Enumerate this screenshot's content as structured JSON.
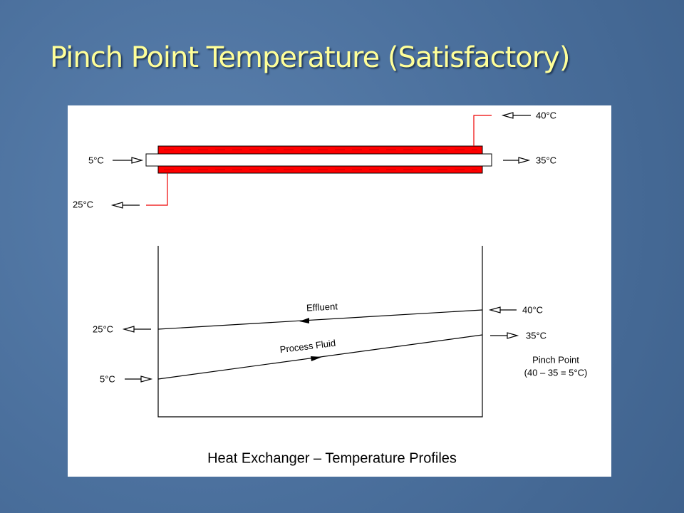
{
  "title": "Pinch Point Temperature (Satisfactory)",
  "exchanger": {
    "labels": [
      "40°C",
      "5°C",
      "35°C",
      "25°C"
    ]
  },
  "profile": {
    "lines": [
      "Effluent",
      "Process Fluid"
    ],
    "labels": [
      "25°C",
      "40°C",
      "35°C",
      "5°C"
    ],
    "note": [
      "Pinch Point",
      "(40 – 35 = 5°C)"
    ]
  },
  "caption": "Heat Exchanger – Temperature Profiles"
}
